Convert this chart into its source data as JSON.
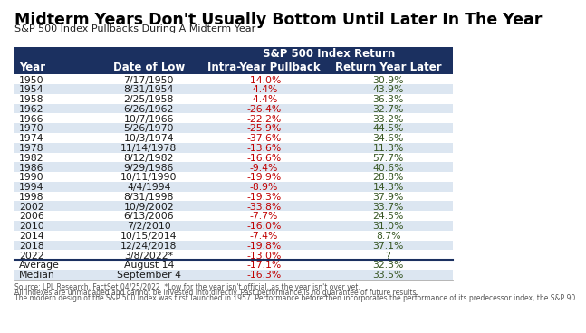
{
  "title": "Midterm Years Don't Usually Bottom Until Later In The Year",
  "subtitle": "S&P 500 Index Pullbacks During A Midterm Year",
  "header_group": "S&P 500 Index Return",
  "columns": [
    "Year",
    "Date of Low",
    "Intra-Year Pullback",
    "Return Year Later"
  ],
  "rows": [
    [
      "1950",
      "7/17/1950",
      "-14.0%",
      "30.9%"
    ],
    [
      "1954",
      "8/31/1954",
      "-4.4%",
      "43.9%"
    ],
    [
      "1958",
      "2/25/1958",
      "-4.4%",
      "36.3%"
    ],
    [
      "1962",
      "6/26/1962",
      "-26.4%",
      "32.7%"
    ],
    [
      "1966",
      "10/7/1966",
      "-22.2%",
      "33.2%"
    ],
    [
      "1970",
      "5/26/1970",
      "-25.9%",
      "44.5%"
    ],
    [
      "1974",
      "10/3/1974",
      "-37.6%",
      "34.6%"
    ],
    [
      "1978",
      "11/14/1978",
      "-13.6%",
      "11.3%"
    ],
    [
      "1982",
      "8/12/1982",
      "-16.6%",
      "57.7%"
    ],
    [
      "1986",
      "9/29/1986",
      "-9.4%",
      "40.6%"
    ],
    [
      "1990",
      "10/11/1990",
      "-19.9%",
      "28.8%"
    ],
    [
      "1994",
      "4/4/1994",
      "-8.9%",
      "14.3%"
    ],
    [
      "1998",
      "8/31/1998",
      "-19.3%",
      "37.9%"
    ],
    [
      "2002",
      "10/9/2002",
      "-33.8%",
      "33.7%"
    ],
    [
      "2006",
      "6/13/2006",
      "-7.7%",
      "24.5%"
    ],
    [
      "2010",
      "7/2/2010",
      "-16.0%",
      "31.0%"
    ],
    [
      "2014",
      "10/15/2014",
      "-7.4%",
      "8.7%"
    ],
    [
      "2018",
      "12/24/2018",
      "-19.8%",
      "37.1%"
    ],
    [
      "2022",
      "3/8/2022*",
      "-13.0%",
      "?"
    ]
  ],
  "avg_row": [
    "Average",
    "August 14",
    "-17.1%",
    "32.3%"
  ],
  "median_row": [
    "Median",
    "September 4",
    "-16.3%",
    "33.5%"
  ],
  "footer_lines": [
    "Source: LPL Research, FactSet 04/25/2022  *Low for the year isn't official, as the year isn't over yet.",
    "All indexes are unmanaged and cannot be invested into directly. Past performance is no guarantee of future results.",
    "The modern design of the S&P 500 Index was first launched in 1957. Performance before then incorporates the performance of its predecessor index, the S&P 90."
  ],
  "header_bg": "#1b3060",
  "header_text": "#ffffff",
  "alt_row_bg": "#dce6f1",
  "normal_row_bg": "#ffffff",
  "red_color": "#c00000",
  "dark_green": "#375623",
  "title_color": "#000000",
  "subtitle_color": "#222222",
  "body_text_color": "#1a1a1a",
  "footer_color": "#555555",
  "sep_color": "#1b3060"
}
